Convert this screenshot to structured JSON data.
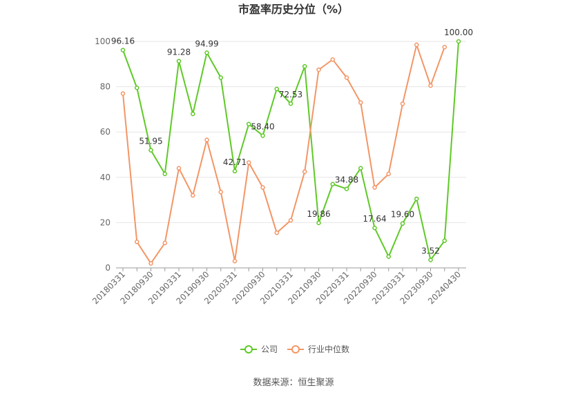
{
  "chart_data": {
    "type": "line",
    "title": "市盈率历史分位（%）",
    "categories": [
      "20180331",
      null,
      "20180930",
      null,
      "20190331",
      null,
      "20190930",
      null,
      "20200331",
      null,
      "20200930",
      null,
      "20210331",
      null,
      "20210930",
      null,
      "20220331",
      null,
      "20220930",
      null,
      "20230331",
      null,
      "20230930",
      null,
      "20240430"
    ],
    "series": [
      {
        "name": "公司",
        "color": "#5ec926",
        "values": [
          96.16,
          79.5,
          51.95,
          41.5,
          91.28,
          68,
          94.99,
          84,
          42.71,
          63.5,
          58.4,
          79,
          72.53,
          89,
          19.86,
          37,
          34.88,
          44,
          17.64,
          5,
          19.6,
          30.5,
          3.52,
          12,
          100.0
        ],
        "value_labels": [
          "96.16",
          null,
          "51.95",
          null,
          "91.28",
          null,
          "94.99",
          null,
          "42.71",
          null,
          "58.40",
          null,
          "72.53",
          null,
          "19.86",
          null,
          "34.88",
          null,
          "17.64",
          null,
          "19.60",
          null,
          "3.52",
          null,
          "100.00"
        ]
      },
      {
        "name": "行业中位数",
        "color": "#f39565",
        "values": [
          77,
          11.5,
          2,
          11,
          44,
          32,
          56.5,
          33.5,
          3,
          46.5,
          35.5,
          15.5,
          21,
          42.5,
          87.5,
          92,
          84,
          73,
          35.5,
          41.5,
          72.5,
          98.5,
          80.5,
          97.5,
          null
        ]
      }
    ],
    "ylim": [
      0,
      100
    ],
    "yticks": [
      0,
      20,
      40,
      60,
      80,
      100
    ],
    "grid": true,
    "legend": "bottom",
    "source": "数据来源：恒生聚源"
  }
}
